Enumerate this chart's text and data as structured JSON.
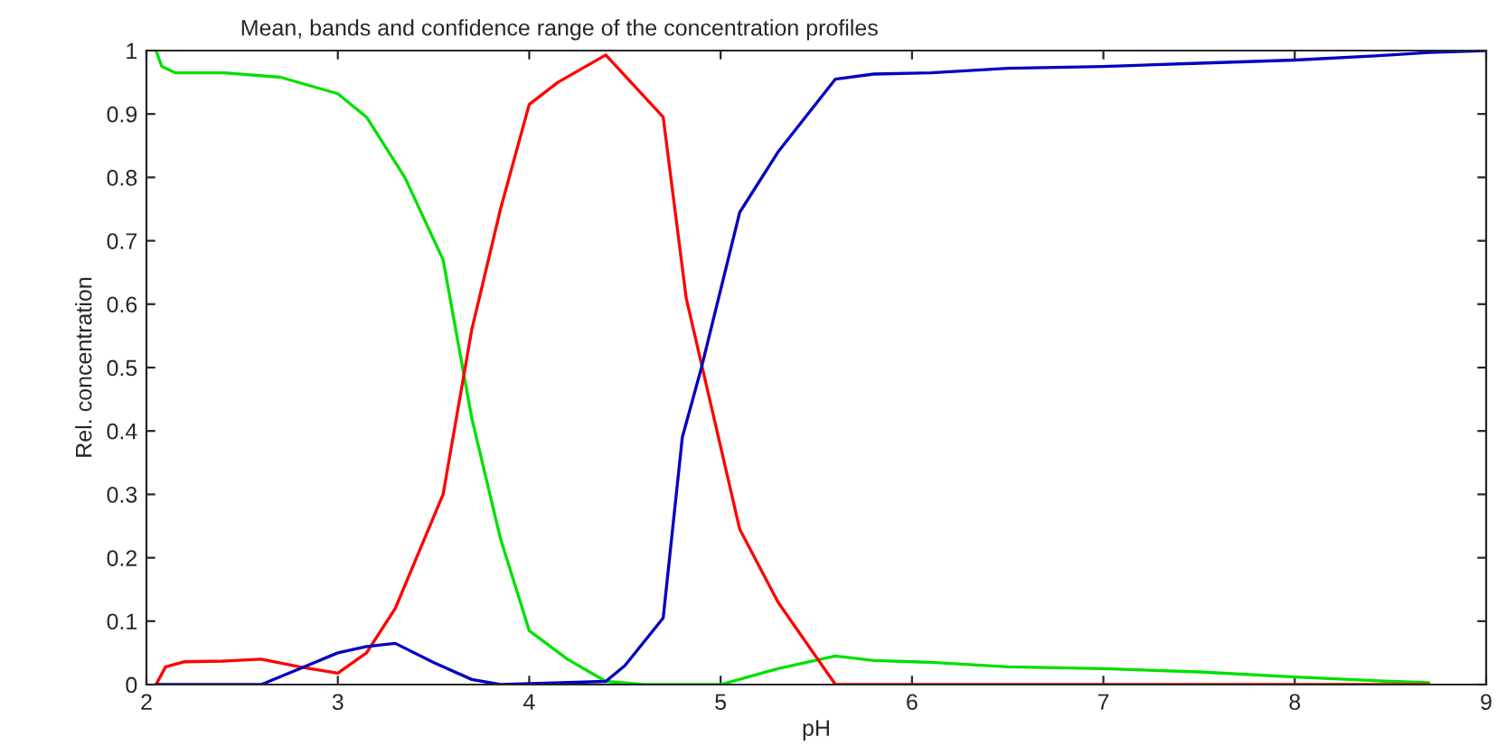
{
  "chart_data": {
    "type": "line",
    "title": "Mean, bands and confidence range of the concentration profiles",
    "xlabel": "pH",
    "ylabel": "Rel. concentration",
    "series": [
      {
        "color": "#00e000",
        "x": [
          2.05,
          2.08,
          2.15,
          2.4,
          2.7,
          3.0,
          3.15,
          3.35,
          3.55,
          3.7,
          3.85,
          4.0,
          4.2,
          4.4,
          4.6,
          5.0,
          5.3,
          5.6,
          5.8,
          6.1,
          6.5,
          7.0,
          7.5,
          8.0,
          8.5,
          8.7
        ],
        "values": [
          1.0,
          0.975,
          0.965,
          0.965,
          0.958,
          0.932,
          0.895,
          0.8,
          0.67,
          0.42,
          0.23,
          0.085,
          0.04,
          0.005,
          0.0,
          0.0,
          0.025,
          0.045,
          0.038,
          0.035,
          0.028,
          0.025,
          0.02,
          0.012,
          0.005,
          0.003
        ]
      },
      {
        "color": "#ff0000",
        "x": [
          2.05,
          2.1,
          2.2,
          2.4,
          2.6,
          2.8,
          3.0,
          3.15,
          3.3,
          3.55,
          3.7,
          3.85,
          4.0,
          4.15,
          4.4,
          4.7,
          4.82,
          5.1,
          5.3,
          5.6,
          8.7
        ],
        "values": [
          0.0,
          0.028,
          0.036,
          0.037,
          0.04,
          0.028,
          0.018,
          0.05,
          0.12,
          0.3,
          0.56,
          0.75,
          0.915,
          0.95,
          0.993,
          0.895,
          0.61,
          0.245,
          0.13,
          0.0,
          0.0
        ]
      },
      {
        "color": "#0000c0",
        "x": [
          2.05,
          2.6,
          2.8,
          3.0,
          3.15,
          3.3,
          3.5,
          3.7,
          3.85,
          4.4,
          4.5,
          4.7,
          4.8,
          4.9,
          5.1,
          5.3,
          5.6,
          5.8,
          6.1,
          6.5,
          7.0,
          7.5,
          8.0,
          8.5,
          8.7,
          9.0
        ],
        "values": [
          0.0,
          0.0,
          0.025,
          0.05,
          0.06,
          0.065,
          0.035,
          0.008,
          0.0,
          0.005,
          0.03,
          0.105,
          0.39,
          0.5,
          0.745,
          0.84,
          0.955,
          0.963,
          0.965,
          0.972,
          0.975,
          0.98,
          0.985,
          0.993,
          0.997,
          1.0
        ]
      }
    ],
    "xlim": [
      2,
      9
    ],
    "xticks": [
      2,
      3,
      4,
      5,
      6,
      7,
      8,
      9
    ],
    "ylim": [
      0,
      1
    ],
    "yticks": [
      0,
      0.1,
      0.2,
      0.3,
      0.4,
      0.5,
      0.6,
      0.7,
      0.8,
      0.9,
      1
    ],
    "grid": false,
    "legend": false
  }
}
